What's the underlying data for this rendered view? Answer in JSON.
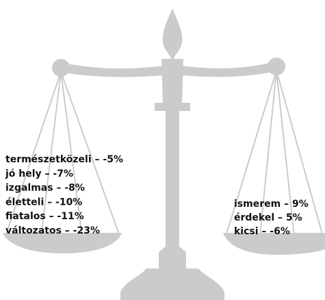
{
  "left_items": [
    "természetközeli – -5%",
    "jó hely – -7%",
    "izgalmas – -8%",
    "életteli – -10%",
    "fiatalos – -11%",
    "változatos – -23%"
  ],
  "right_items": [
    "ismerem – 9%",
    "érdekel – 5%",
    "kicsi – -6%"
  ]
}
